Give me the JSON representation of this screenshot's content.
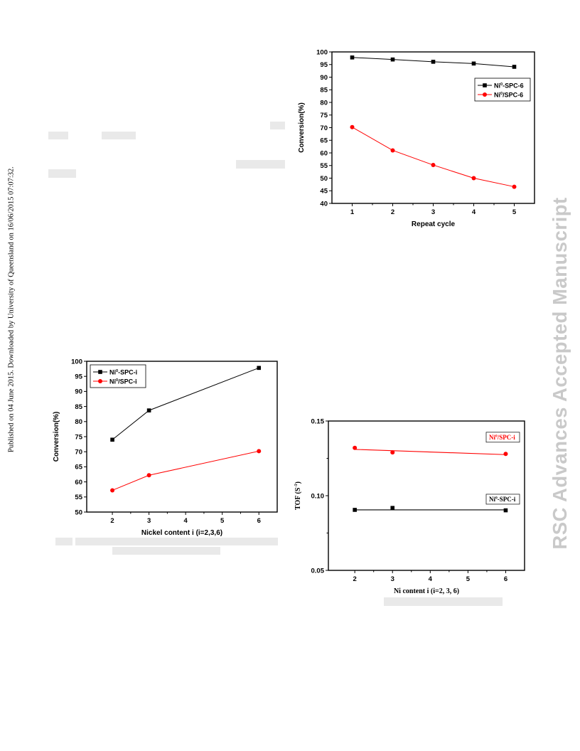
{
  "page": {
    "side_note": "Published on 04 June 2015. Downloaded by University of Queensland on 16/06/2015 07:07:32.",
    "watermark": "RSC Advances Accepted Manuscript"
  },
  "chart_data": [
    {
      "id": "repeat",
      "type": "line",
      "xlabel": "Repeat cycle",
      "ylabel": "Conversion(%)",
      "xlim": [
        0.5,
        5.5
      ],
      "ylim": [
        40,
        100
      ],
      "xticks": [
        1,
        2,
        3,
        4,
        5
      ],
      "yticks": [
        40,
        45,
        50,
        55,
        60,
        65,
        70,
        75,
        80,
        85,
        90,
        95,
        100
      ],
      "legend_position": "top-right",
      "grid": false,
      "series": [
        {
          "name_main": "Ni",
          "name_sup": "0",
          "name_rest": "-SPC-6",
          "color": "#000000",
          "marker": "square",
          "x": [
            1,
            2,
            3,
            4,
            5
          ],
          "values": [
            97.8,
            97.0,
            96.1,
            95.4,
            94.1
          ]
        },
        {
          "name_main": "Ni",
          "name_sup": "0",
          "name_rest": "/SPC-6",
          "color": "#ff0000",
          "marker": "circle",
          "x": [
            1,
            2,
            3,
            4,
            5
          ],
          "values": [
            70.2,
            61.0,
            55.2,
            50.0,
            46.6
          ]
        }
      ]
    },
    {
      "id": "nickel",
      "type": "line",
      "xlabel": "Nickel content i (i=2,3,6)",
      "ylabel": "Conversion(%)",
      "xlim": [
        1.3,
        6.5
      ],
      "ylim": [
        50,
        100
      ],
      "xticks": [
        2,
        3,
        4,
        5,
        6
      ],
      "yticks": [
        50,
        55,
        60,
        65,
        70,
        75,
        80,
        85,
        90,
        95,
        100
      ],
      "legend_position": "top-left",
      "grid": false,
      "series": [
        {
          "name_main": "Ni",
          "name_sup": "0",
          "name_rest": "-SPC-i",
          "color": "#000000",
          "marker": "square",
          "x": [
            2,
            3,
            6
          ],
          "values": [
            74.0,
            83.7,
            97.8
          ]
        },
        {
          "name_main": "Ni",
          "name_sup": "0",
          "name_rest": "/SPC-i",
          "color": "#ff0000",
          "marker": "circle",
          "x": [
            2,
            3,
            6
          ],
          "values": [
            57.2,
            62.2,
            70.2
          ]
        }
      ]
    },
    {
      "id": "tof",
      "type": "scatter",
      "xlabel": "Ni content i (i=2, 3, 6)",
      "ylabel_main": "TOF (S",
      "ylabel_sup": "-1",
      "ylabel_rest": ")",
      "xlim": [
        1.3,
        6.5
      ],
      "ylim": [
        0.05,
        0.15
      ],
      "xticks": [
        2,
        3,
        4,
        5,
        6
      ],
      "yticks": [
        0.05,
        0.1,
        0.15
      ],
      "ytick_labels": [
        "0.05",
        "0.10",
        "0.15"
      ],
      "grid": false,
      "series": [
        {
          "name_main": "Ni",
          "name_sup": "0",
          "name_rest": "/SPC-i",
          "color": "#ff0000",
          "marker": "circle",
          "x": [
            2,
            3,
            6
          ],
          "values": [
            0.132,
            0.129,
            0.128
          ],
          "fit": [
            0.131,
            0.1275
          ]
        },
        {
          "name_main": "Ni",
          "name_sup": "0",
          "name_rest": "-SPC-i",
          "color": "#000000",
          "marker": "square",
          "x": [
            2,
            3,
            6
          ],
          "values": [
            0.0905,
            0.0918,
            0.0902
          ],
          "fit": [
            0.0905,
            0.0905
          ]
        }
      ]
    }
  ]
}
